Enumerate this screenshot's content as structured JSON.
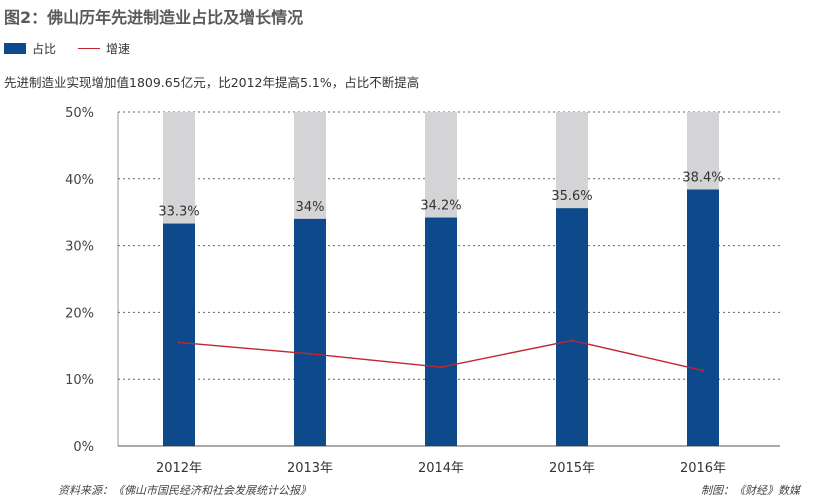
{
  "title": "图2：佛山历年先进制造业占比及增长情况",
  "legend": {
    "share_label": "占比",
    "growth_label": "增速"
  },
  "subtitle": "先进制造业实现增加值1809.65亿元，比2012年提高5.1%，占比不断提高",
  "source": "资料来源：《佛山市国民经济和社会发展统计公报》",
  "maker": "制图：《财经》数媒",
  "colors": {
    "share": "#0e4a8b",
    "background_bar": "#d4d4d6",
    "growth": "#c0262d"
  },
  "chart_data": {
    "type": "bar",
    "categories": [
      "2012年",
      "2013年",
      "2014年",
      "2015年",
      "2016年"
    ],
    "series": [
      {
        "name": "占比",
        "type": "bar",
        "values": [
          33.3,
          34,
          34.2,
          35.6,
          38.4
        ],
        "labels": [
          "33.3%",
          "34%",
          "34.2%",
          "35.6%",
          "38.4%"
        ]
      },
      {
        "name": "增速",
        "type": "line",
        "values": [
          15.5,
          13.8,
          11.8,
          15.8,
          11.3
        ]
      }
    ],
    "yticks": [
      "0%",
      "10%",
      "20%",
      "30%",
      "40%",
      "50%"
    ],
    "ylim": [
      0,
      50
    ],
    "grid": true
  }
}
